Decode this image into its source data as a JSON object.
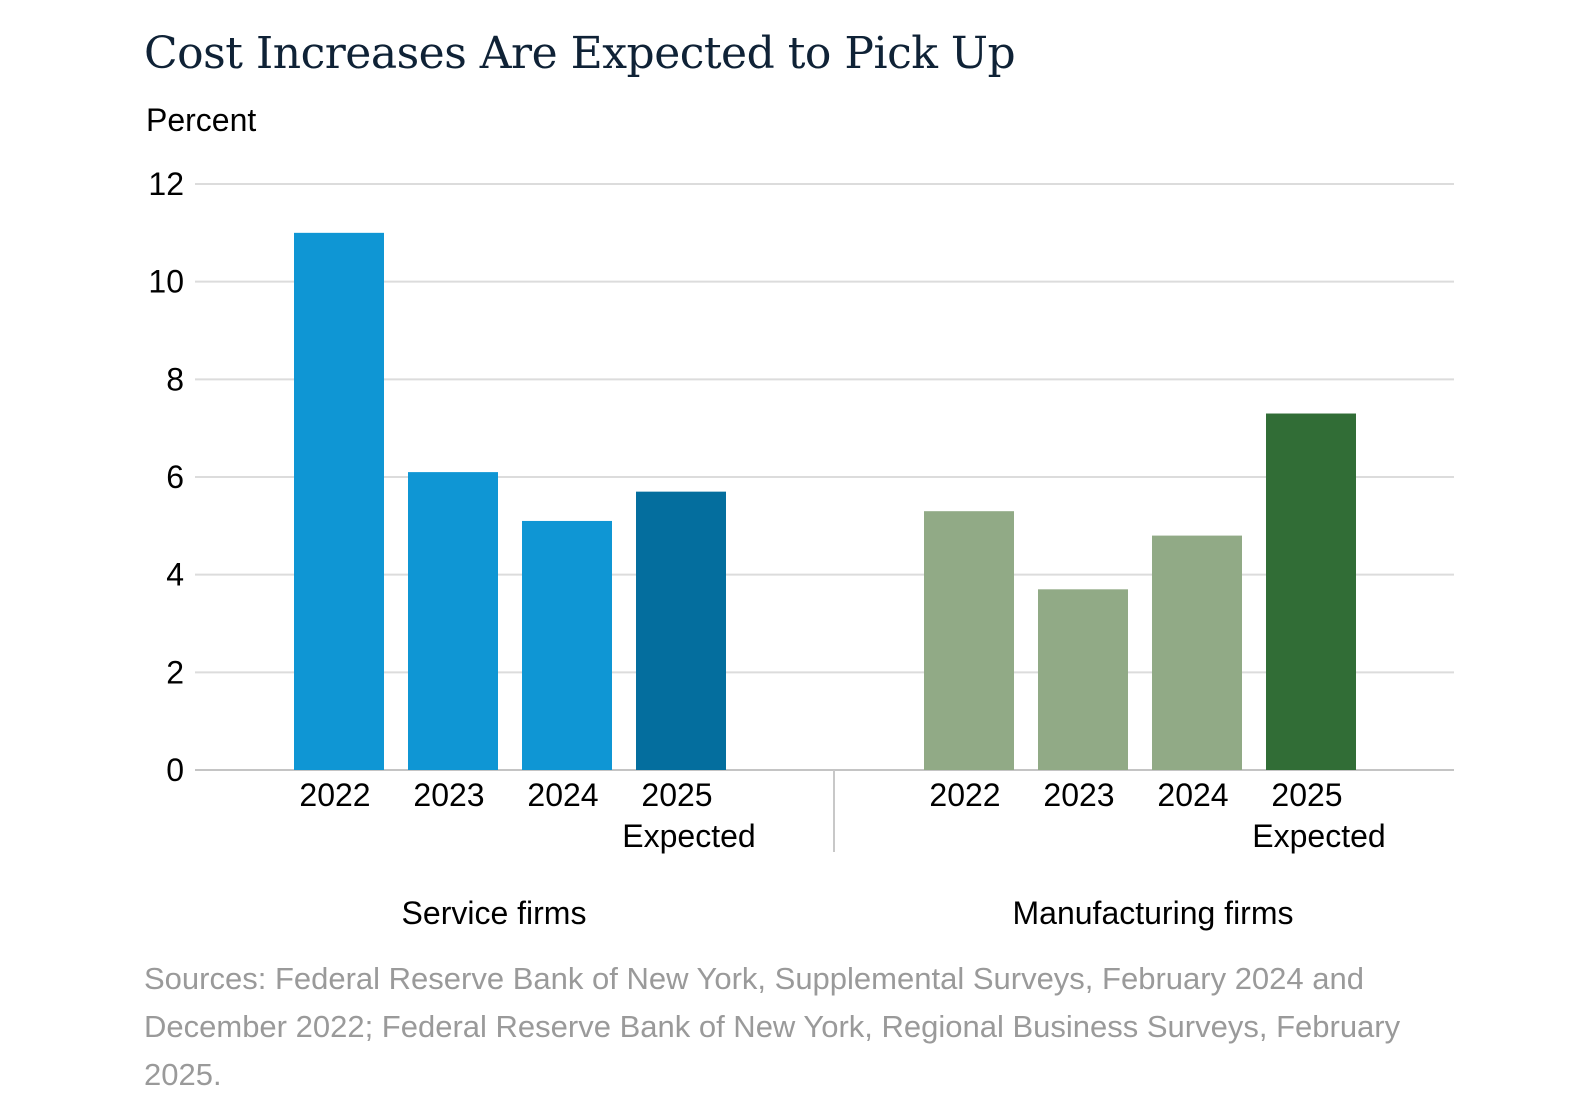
{
  "title": "Cost Increases Are Expected to Pick Up",
  "ylabel": "Percent",
  "sources": "Sources: Federal Reserve Bank of New York, Supplemental Surveys, February 2024 and December 2022; Federal Reserve Bank of New York, Regional Business Surveys, February 2025.",
  "chart_data": {
    "type": "bar",
    "ylim": [
      0,
      12
    ],
    "yticks": [
      0,
      2,
      4,
      6,
      8,
      10,
      12
    ],
    "grid": true,
    "groups": [
      {
        "name": "Service firms",
        "bars": [
          {
            "label": "2022",
            "sublabel": "",
            "value": 11.0,
            "color": "#0f96d4"
          },
          {
            "label": "2023",
            "sublabel": "",
            "value": 6.1,
            "color": "#0f96d4"
          },
          {
            "label": "2024",
            "sublabel": "",
            "value": 5.1,
            "color": "#0f96d4"
          },
          {
            "label": "2025",
            "sublabel": "Expected",
            "value": 5.7,
            "color": "#046e9e"
          }
        ]
      },
      {
        "name": "Manufacturing firms",
        "bars": [
          {
            "label": "2022",
            "sublabel": "",
            "value": 5.3,
            "color": "#91aa86"
          },
          {
            "label": "2023",
            "sublabel": "",
            "value": 3.7,
            "color": "#91aa86"
          },
          {
            "label": "2024",
            "sublabel": "",
            "value": 4.8,
            "color": "#91aa86"
          },
          {
            "label": "2025",
            "sublabel": "Expected",
            "value": 7.3,
            "color": "#316d36"
          }
        ]
      }
    ]
  }
}
